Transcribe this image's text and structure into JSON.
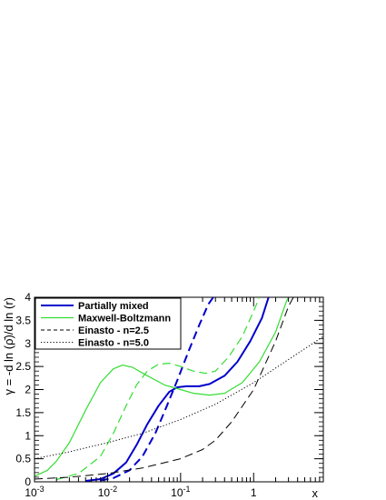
{
  "chart_data": {
    "type": "line",
    "xlabel": "x",
    "ylabel": "γ = -d ln (ρ̄)/d ln (r)",
    "xscale": "log",
    "xlim": [
      0.001,
      9
    ],
    "ylim": [
      0,
      4
    ],
    "grid": false,
    "x_ticks": [
      {
        "value": 0.001,
        "base": "10",
        "exp": "-3"
      },
      {
        "value": 0.01,
        "base": "10",
        "exp": "-2"
      },
      {
        "value": 0.1,
        "base": "10",
        "exp": "-1"
      },
      {
        "value": 1,
        "base": "1",
        "exp": ""
      }
    ],
    "y_ticks": [
      "0",
      "0.5",
      "1",
      "1.5",
      "2",
      "2.5",
      "3",
      "3.5",
      "4"
    ],
    "legend_position": "top-left",
    "legend": [
      {
        "label": "Partially mixed",
        "color": "#0000cc",
        "style": "solid",
        "width": 2
      },
      {
        "label": "Maxwell-Boltzmann",
        "color": "#33dd33",
        "style": "solid",
        "width": 1.2
      },
      {
        "label": "Einasto - n=2.5",
        "color": "#000000",
        "style": "dashed",
        "width": 1
      },
      {
        "label": "Einasto - n=5.0",
        "color": "#000000",
        "style": "dotted",
        "width": 1
      }
    ],
    "series": [
      {
        "color": "#0000cc",
        "style": "solid",
        "width": 2,
        "points": [
          [
            0.005,
            0.02
          ],
          [
            0.008,
            0.06
          ],
          [
            0.012,
            0.18
          ],
          [
            0.018,
            0.42
          ],
          [
            0.025,
            0.8
          ],
          [
            0.035,
            1.25
          ],
          [
            0.05,
            1.65
          ],
          [
            0.07,
            1.95
          ],
          [
            0.09,
            2.05
          ],
          [
            0.12,
            2.07
          ],
          [
            0.18,
            2.07
          ],
          [
            0.25,
            2.12
          ],
          [
            0.4,
            2.3
          ],
          [
            0.6,
            2.6
          ],
          [
            0.9,
            3.05
          ],
          [
            1.3,
            3.55
          ],
          [
            1.6,
            4.0
          ]
        ]
      },
      {
        "color": "#0000cc",
        "style": "dashed",
        "width": 2,
        "points": [
          [
            0.008,
            0.03
          ],
          [
            0.012,
            0.08
          ],
          [
            0.02,
            0.25
          ],
          [
            0.03,
            0.55
          ],
          [
            0.045,
            1.05
          ],
          [
            0.065,
            1.65
          ],
          [
            0.09,
            2.2
          ],
          [
            0.13,
            2.85
          ],
          [
            0.18,
            3.4
          ],
          [
            0.24,
            3.85
          ],
          [
            0.28,
            4.0
          ]
        ]
      },
      {
        "color": "#33dd33",
        "style": "solid",
        "width": 1.2,
        "points": [
          [
            0.001,
            0.12
          ],
          [
            0.0015,
            0.25
          ],
          [
            0.002,
            0.45
          ],
          [
            0.003,
            0.85
          ],
          [
            0.005,
            1.55
          ],
          [
            0.008,
            2.15
          ],
          [
            0.012,
            2.45
          ],
          [
            0.016,
            2.53
          ],
          [
            0.022,
            2.48
          ],
          [
            0.035,
            2.3
          ],
          [
            0.06,
            2.1
          ],
          [
            0.1,
            2.0
          ],
          [
            0.15,
            1.92
          ],
          [
            0.25,
            1.88
          ],
          [
            0.4,
            1.92
          ],
          [
            0.7,
            2.15
          ],
          [
            1.2,
            2.6
          ],
          [
            2,
            3.25
          ],
          [
            2.8,
            3.9
          ],
          [
            3,
            4.0
          ]
        ]
      },
      {
        "color": "#33dd33",
        "style": "dashed",
        "width": 1.2,
        "points": [
          [
            0.002,
            0.05
          ],
          [
            0.004,
            0.18
          ],
          [
            0.008,
            0.55
          ],
          [
            0.012,
            1.05
          ],
          [
            0.018,
            1.65
          ],
          [
            0.025,
            2.1
          ],
          [
            0.035,
            2.4
          ],
          [
            0.05,
            2.55
          ],
          [
            0.07,
            2.57
          ],
          [
            0.1,
            2.5
          ],
          [
            0.15,
            2.4
          ],
          [
            0.22,
            2.35
          ],
          [
            0.3,
            2.4
          ],
          [
            0.45,
            2.7
          ],
          [
            0.7,
            3.15
          ],
          [
            1,
            3.7
          ],
          [
            1.2,
            4.0
          ]
        ]
      },
      {
        "color": "#000000",
        "style": "dashed",
        "width": 1,
        "points": [
          [
            0.001,
            0.06
          ],
          [
            0.003,
            0.1
          ],
          [
            0.01,
            0.18
          ],
          [
            0.03,
            0.3
          ],
          [
            0.1,
            0.5
          ],
          [
            0.2,
            0.7
          ],
          [
            0.3,
            0.9
          ],
          [
            0.5,
            1.3
          ],
          [
            1,
            2.0
          ],
          [
            2,
            3.05
          ],
          [
            3,
            3.8
          ],
          [
            3.5,
            4.0
          ]
        ]
      },
      {
        "color": "#000000",
        "style": "dotted",
        "width": 1,
        "points": [
          [
            0.001,
            0.5
          ],
          [
            0.003,
            0.65
          ],
          [
            0.01,
            0.85
          ],
          [
            0.03,
            1.05
          ],
          [
            0.1,
            1.35
          ],
          [
            0.3,
            1.68
          ],
          [
            1,
            2.15
          ],
          [
            3,
            2.65
          ],
          [
            9,
            3.15
          ]
        ]
      }
    ]
  }
}
